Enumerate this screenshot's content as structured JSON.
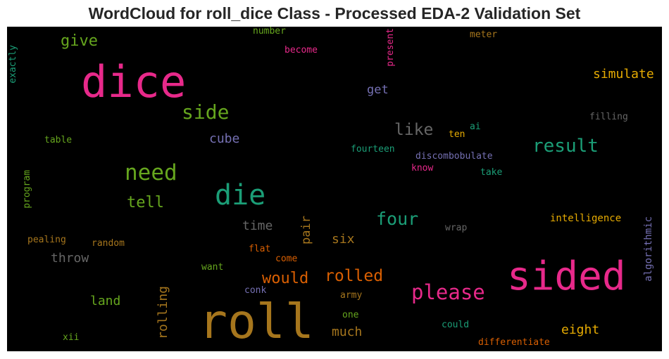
{
  "chart_data": {
    "type": "wordcloud",
    "title": "WordCloud for roll_dice Class - Processed EDA-2 Validation Set",
    "background": "#000000",
    "words": [
      {
        "text": "dice",
        "color": "#e7298a"
      },
      {
        "text": "roll",
        "color": "#a6761d"
      },
      {
        "text": "sided",
        "color": "#e7298a"
      },
      {
        "text": "die",
        "color": "#1b9e77"
      },
      {
        "text": "need",
        "color": "#66a61e"
      },
      {
        "text": "side",
        "color": "#66a61e"
      },
      {
        "text": "please",
        "color": "#e7298a"
      },
      {
        "text": "result",
        "color": "#1b9e77"
      },
      {
        "text": "four",
        "color": "#1b9e77"
      },
      {
        "text": "rolled",
        "color": "#d95f02"
      },
      {
        "text": "like",
        "color": "#666666"
      },
      {
        "text": "would",
        "color": "#d95f02"
      },
      {
        "text": "tell",
        "color": "#66a61e"
      },
      {
        "text": "give",
        "color": "#66a61e"
      },
      {
        "text": "simulate",
        "color": "#e6ab02"
      },
      {
        "text": "throw",
        "color": "#666666"
      },
      {
        "text": "rolling",
        "color": "#a6761d"
      },
      {
        "text": "time",
        "color": "#666666"
      },
      {
        "text": "pair",
        "color": "#a6761d"
      },
      {
        "text": "six",
        "color": "#a6761d"
      },
      {
        "text": "much",
        "color": "#a6761d"
      },
      {
        "text": "eight",
        "color": "#e6ab02"
      },
      {
        "text": "get",
        "color": "#7570b3"
      },
      {
        "text": "cube",
        "color": "#7570b3"
      },
      {
        "text": "land",
        "color": "#66a61e"
      },
      {
        "text": "intelligence",
        "color": "#e6ab02"
      },
      {
        "text": "algorithmic",
        "color": "#7570b3"
      },
      {
        "text": "present",
        "color": "#e7298a"
      },
      {
        "text": "exactly",
        "color": "#1b9e77"
      },
      {
        "text": "number",
        "color": "#66a61e"
      },
      {
        "text": "become",
        "color": "#e7298a"
      },
      {
        "text": "meter",
        "color": "#a6761d"
      },
      {
        "text": "filling",
        "color": "#666666"
      },
      {
        "text": "ai",
        "color": "#1b9e77"
      },
      {
        "text": "ten",
        "color": "#e6ab02"
      },
      {
        "text": "table",
        "color": "#66a61e"
      },
      {
        "text": "fourteen",
        "color": "#1b9e77"
      },
      {
        "text": "discombobulate",
        "color": "#7570b3"
      },
      {
        "text": "know",
        "color": "#e7298a"
      },
      {
        "text": "take",
        "color": "#1b9e77"
      },
      {
        "text": "program",
        "color": "#66a61e"
      },
      {
        "text": "wrap",
        "color": "#666666"
      },
      {
        "text": "pealing",
        "color": "#a6761d"
      },
      {
        "text": "random",
        "color": "#a6761d"
      },
      {
        "text": "flat",
        "color": "#d95f02"
      },
      {
        "text": "come",
        "color": "#d95f02"
      },
      {
        "text": "want",
        "color": "#66a61e"
      },
      {
        "text": "conk",
        "color": "#7570b3"
      },
      {
        "text": "army",
        "color": "#a6761d"
      },
      {
        "text": "one",
        "color": "#66a61e"
      },
      {
        "text": "could",
        "color": "#1b9e77"
      },
      {
        "text": "xii",
        "color": "#66a61e"
      },
      {
        "text": "differentiate",
        "color": "#d95f02"
      }
    ]
  }
}
